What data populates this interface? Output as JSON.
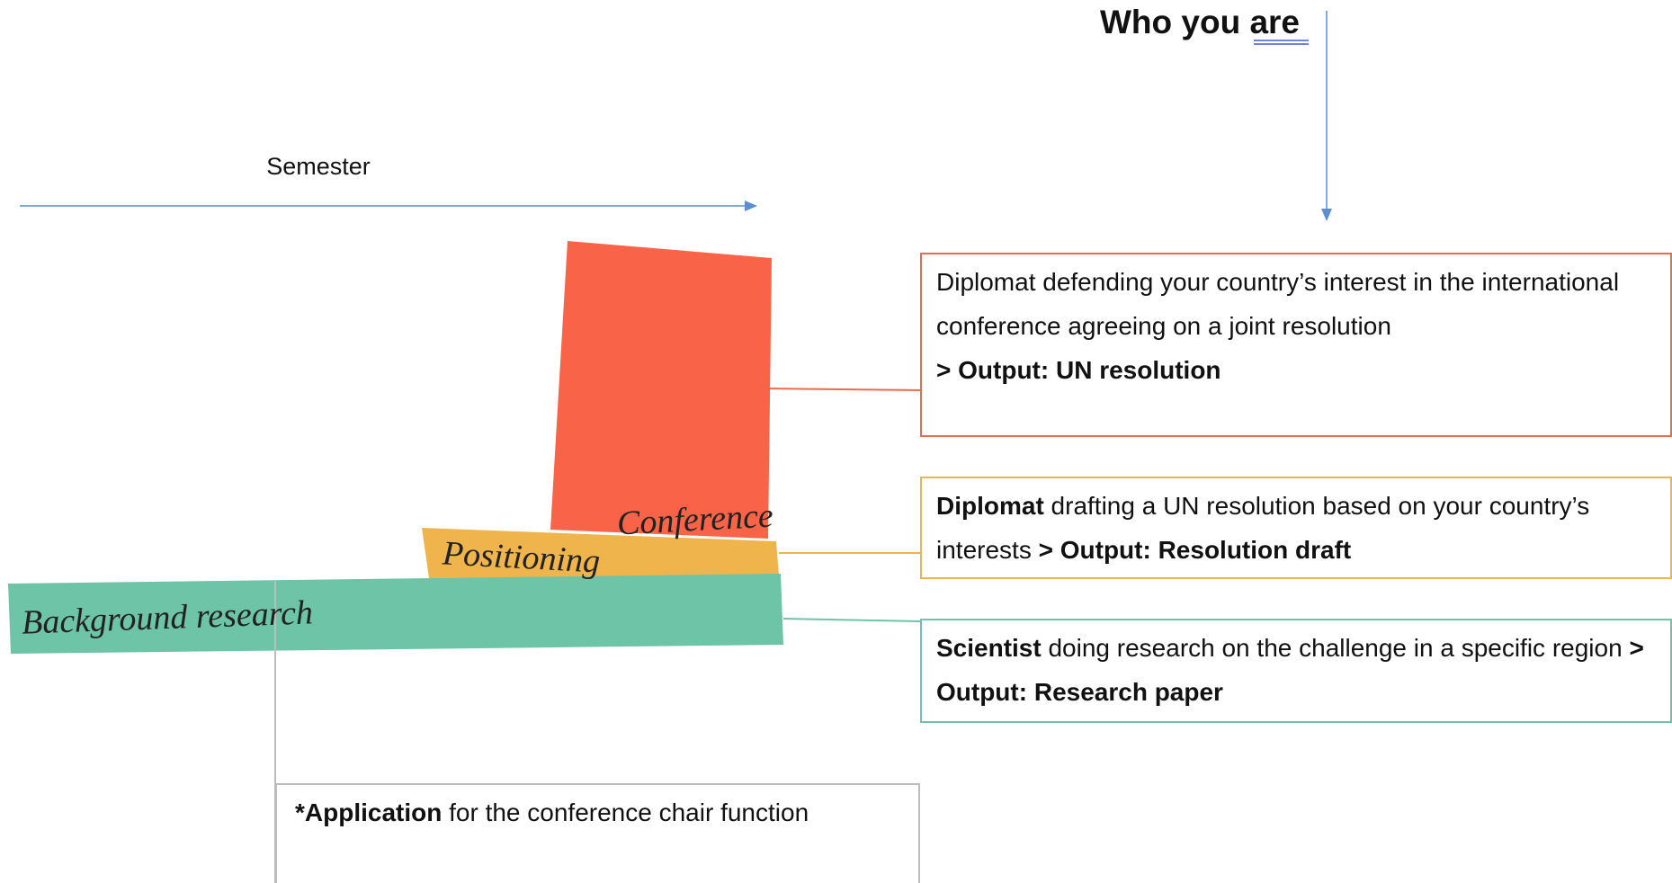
{
  "header": {
    "title": "Who you are",
    "axis_label": "Semester"
  },
  "phases": [
    {
      "label": "Conference",
      "color": "#f96449"
    },
    {
      "label": "Positioning",
      "color": "#f0b44c"
    },
    {
      "label": "Background research",
      "color": "#6dc4a7"
    }
  ],
  "roles": [
    {
      "text": "Diplomat defending your country’s interest in the international conference agreeing on a joint resolution",
      "output": "> Output: UN resolution",
      "color": "#ea6a50"
    },
    {
      "lead": "Diplomat",
      "text": " drafting a UN resolution based on your country’s interests ",
      "output": "> Output: Resolution draft",
      "color": "#f0b44c"
    },
    {
      "lead": "Scientist",
      "text": " doing research on the challenge in a specific region ",
      "output": "> Output: Research paper",
      "color": "#6dc4a7"
    },
    {
      "lead": "*Application",
      "text": " for the conference chair function",
      "color": "#bdbdbd"
    }
  ]
}
